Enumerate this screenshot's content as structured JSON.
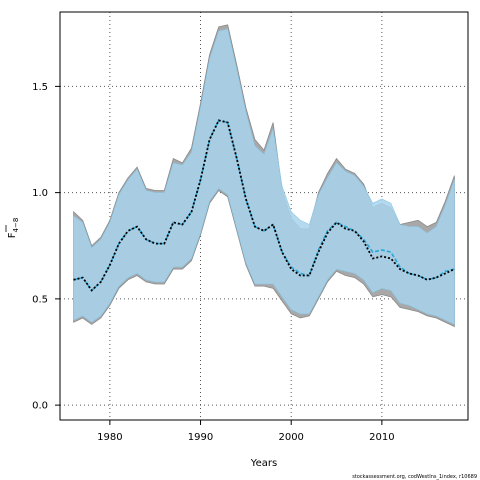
{
  "chart_data": {
    "type": "line",
    "title": "",
    "xlabel": "Years",
    "ylabel_main": "F",
    "ylabel_sub": "4−8",
    "xlim": [
      1974.5,
      2019.5
    ],
    "ylim": [
      -0.07,
      1.85
    ],
    "grid": true,
    "x_ticks": [
      1980,
      1990,
      2000,
      2010
    ],
    "y_ticks": [
      0.0,
      0.5,
      1.0,
      1.5
    ],
    "x_tick_labels": [
      "1980",
      "1990",
      "2000",
      "2010"
    ],
    "y_tick_labels": [
      "0.0",
      "0.5",
      "1.0",
      "1.5"
    ],
    "credit": "stockassessment.org, codWestIns_1index, r10689",
    "colors": {
      "outer_band": "#a8a8a8",
      "inner_band": "#a8d4ec",
      "outer_line": "#000000",
      "inner_line": "#2aa6d6"
    },
    "x": [
      1976,
      1977,
      1978,
      1979,
      1980,
      1981,
      1982,
      1983,
      1984,
      1985,
      1986,
      1987,
      1988,
      1989,
      1990,
      1991,
      1992,
      1993,
      1994,
      1995,
      1996,
      1997,
      1998,
      1999,
      2000,
      2001,
      2002,
      2003,
      2004,
      2005,
      2006,
      2007,
      2008,
      2009,
      2010,
      2011,
      2012,
      2013,
      2014,
      2015,
      2016,
      2017,
      2018
    ],
    "series": [
      {
        "name": "",
        "role": "estimate_outer",
        "style": "black-dotted",
        "values": [
          0.59,
          0.6,
          0.54,
          0.58,
          0.66,
          0.76,
          0.82,
          0.84,
          0.78,
          0.76,
          0.76,
          0.86,
          0.85,
          0.91,
          1.06,
          1.25,
          1.34,
          1.33,
          1.16,
          0.97,
          0.84,
          0.82,
          0.85,
          0.72,
          0.64,
          0.61,
          0.61,
          0.72,
          0.81,
          0.86,
          0.83,
          0.82,
          0.77,
          0.69,
          0.7,
          0.69,
          0.64,
          0.62,
          0.61,
          0.59,
          0.6,
          0.62,
          0.64
        ]
      },
      {
        "name": "",
        "role": "estimate_inner",
        "style": "blue-dashed",
        "values": [
          0.59,
          0.6,
          0.54,
          0.58,
          0.66,
          0.76,
          0.82,
          0.84,
          0.78,
          0.76,
          0.76,
          0.86,
          0.85,
          0.91,
          1.06,
          1.25,
          1.34,
          1.33,
          1.16,
          0.97,
          0.84,
          0.82,
          0.85,
          0.72,
          0.65,
          0.62,
          0.61,
          0.73,
          0.82,
          0.86,
          0.84,
          0.82,
          0.78,
          0.72,
          0.73,
          0.72,
          0.65,
          0.62,
          0.61,
          0.59,
          0.6,
          0.63,
          0.64
        ]
      },
      {
        "name": "",
        "role": "upper_outer",
        "values": [
          0.91,
          0.87,
          0.75,
          0.79,
          0.87,
          1.0,
          1.07,
          1.12,
          1.02,
          1.01,
          1.01,
          1.16,
          1.14,
          1.21,
          1.42,
          1.65,
          1.78,
          1.79,
          1.6,
          1.4,
          1.25,
          1.2,
          1.33,
          1.01,
          0.88,
          0.83,
          0.83,
          1.0,
          1.09,
          1.16,
          1.11,
          1.09,
          1.04,
          0.93,
          0.95,
          0.93,
          0.85,
          0.86,
          0.87,
          0.84,
          0.86,
          0.96,
          1.08
        ]
      },
      {
        "name": "",
        "role": "lower_outer",
        "values": [
          0.39,
          0.41,
          0.38,
          0.41,
          0.47,
          0.55,
          0.59,
          0.61,
          0.58,
          0.57,
          0.57,
          0.64,
          0.64,
          0.68,
          0.8,
          0.95,
          1.01,
          0.98,
          0.82,
          0.66,
          0.56,
          0.56,
          0.55,
          0.49,
          0.43,
          0.41,
          0.42,
          0.5,
          0.58,
          0.63,
          0.61,
          0.6,
          0.57,
          0.51,
          0.52,
          0.51,
          0.46,
          0.45,
          0.44,
          0.42,
          0.41,
          0.39,
          0.37
        ]
      },
      {
        "name": "",
        "role": "upper_inner",
        "values": [
          0.89,
          0.86,
          0.74,
          0.78,
          0.86,
          0.99,
          1.06,
          1.11,
          1.01,
          1.0,
          1.0,
          1.14,
          1.13,
          1.19,
          1.4,
          1.63,
          1.76,
          1.77,
          1.58,
          1.38,
          1.22,
          1.18,
          1.3,
          1.03,
          0.91,
          0.87,
          0.85,
          0.99,
          1.07,
          1.14,
          1.1,
          1.08,
          1.03,
          0.95,
          0.97,
          0.95,
          0.85,
          0.84,
          0.84,
          0.81,
          0.84,
          0.94,
          1.06
        ]
      },
      {
        "name": "",
        "role": "lower_inner",
        "values": [
          0.4,
          0.42,
          0.39,
          0.42,
          0.48,
          0.56,
          0.6,
          0.62,
          0.59,
          0.58,
          0.58,
          0.65,
          0.65,
          0.69,
          0.81,
          0.96,
          1.02,
          0.99,
          0.83,
          0.67,
          0.57,
          0.57,
          0.57,
          0.51,
          0.45,
          0.43,
          0.43,
          0.51,
          0.59,
          0.64,
          0.63,
          0.62,
          0.59,
          0.53,
          0.55,
          0.54,
          0.48,
          0.47,
          0.45,
          0.43,
          0.42,
          0.4,
          0.38
        ]
      }
    ]
  }
}
